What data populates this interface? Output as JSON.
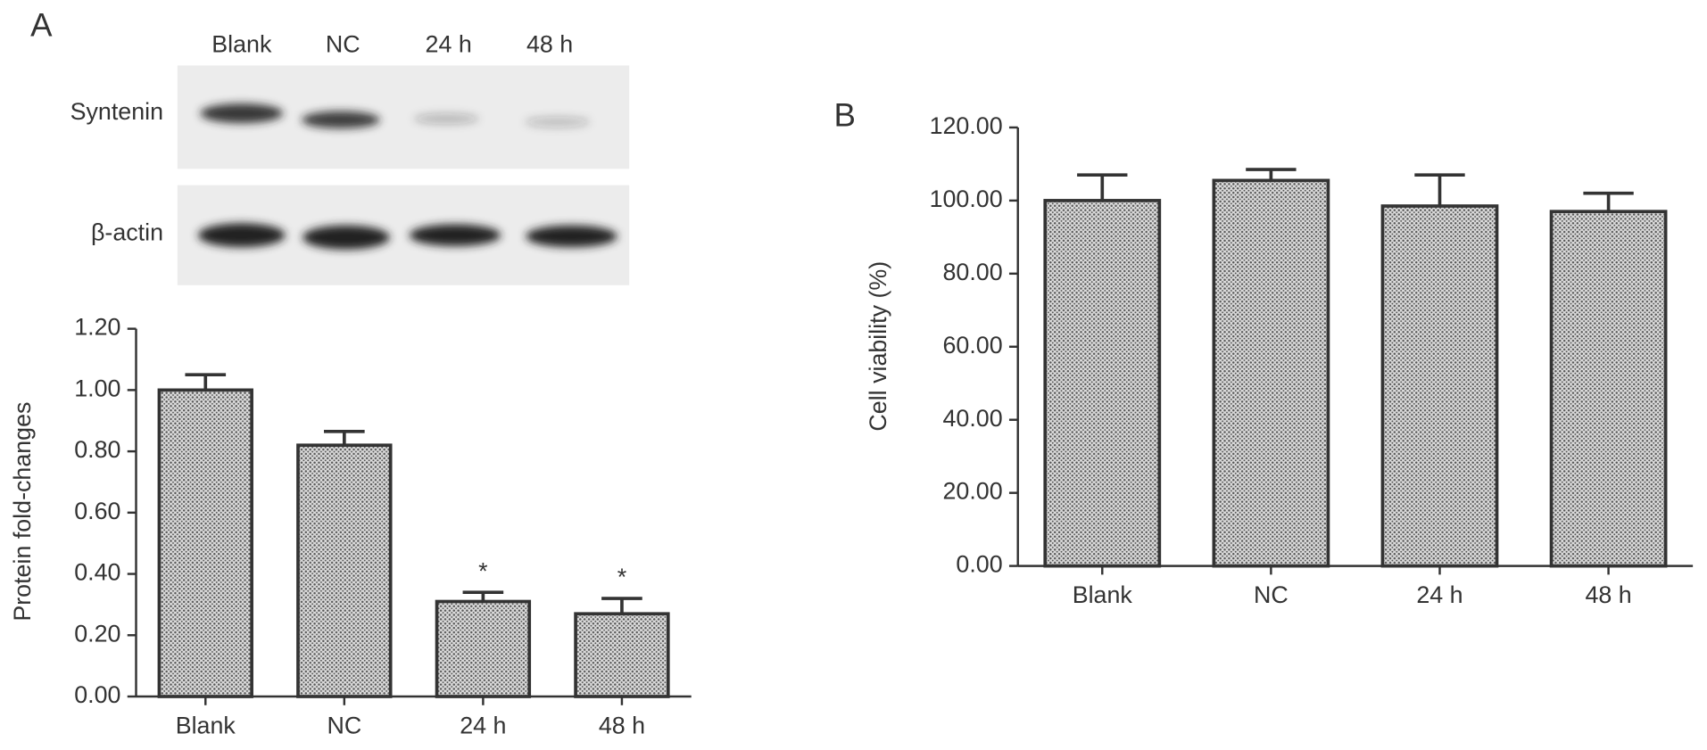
{
  "panels": [
    "A",
    "B"
  ],
  "blot": {
    "lanes": [
      "Blank",
      "NC",
      "24 h",
      "48 h"
    ],
    "rows": [
      "Syntenin",
      "β-actin"
    ]
  },
  "chart_data": [
    {
      "type": "bar",
      "ylabel": "Protein fold-changes",
      "categories": [
        "Blank",
        "NC",
        "24 h",
        "48 h"
      ],
      "values": [
        1.0,
        0.82,
        0.31,
        0.27
      ],
      "errors": [
        0.05,
        0.045,
        0.03,
        0.05
      ],
      "annotations": [
        null,
        null,
        "*",
        "*"
      ],
      "color": "#555555",
      "ylim": [
        0,
        1.2
      ],
      "yticks": [
        {
          "value": 0,
          "label": "0.00"
        },
        {
          "value": 0.2,
          "label": "0.20"
        },
        {
          "value": 0.4,
          "label": "0.40"
        },
        {
          "value": 0.6,
          "label": "0.60"
        },
        {
          "value": 0.8,
          "label": "0.80"
        },
        {
          "value": 1.0,
          "label": "1.00"
        },
        {
          "value": 1.2,
          "label": "1.20"
        }
      ]
    },
    {
      "type": "bar",
      "ylabel": "Cell viability (%)",
      "categories": [
        "Blank",
        "NC",
        "24 h",
        "48 h"
      ],
      "values": [
        100,
        105.5,
        98.5,
        97
      ],
      "errors": [
        7,
        3,
        8.5,
        5
      ],
      "color": "#555555",
      "ylim": [
        0,
        120
      ],
      "yticks": [
        {
          "value": 0,
          "label": "0.00"
        },
        {
          "value": 20,
          "label": "20.00"
        },
        {
          "value": 40,
          "label": "40.00"
        },
        {
          "value": 60,
          "label": "60.00"
        },
        {
          "value": 80,
          "label": "80.00"
        },
        {
          "value": 100,
          "label": "100.00"
        },
        {
          "value": 120,
          "label": "120.00"
        }
      ]
    }
  ]
}
